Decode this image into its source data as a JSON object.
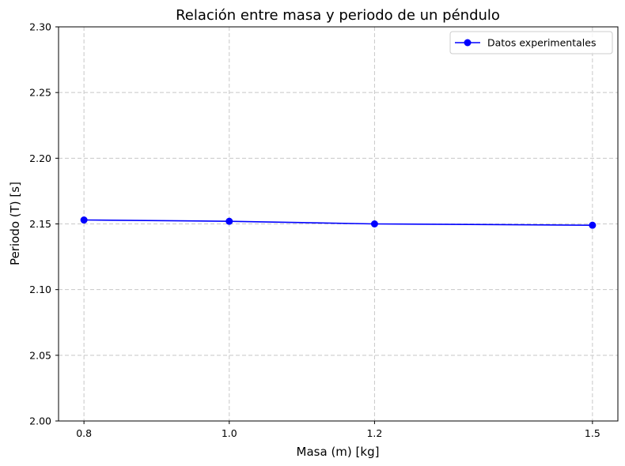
{
  "chart_data": {
    "type": "line",
    "title": "Relación entre masa y periodo de un péndulo",
    "xlabel": "Masa (m) [kg]",
    "ylabel": "Periodo (T) [s]",
    "x": [
      0.8,
      1.0,
      1.2,
      1.5
    ],
    "xticks": [
      "0.8",
      "1.0",
      "1.2",
      "1.5"
    ],
    "yticks": [
      "2.00",
      "2.05",
      "2.10",
      "2.15",
      "2.20",
      "2.25",
      "2.30"
    ],
    "xlim": [
      0.765,
      1.535
    ],
    "ylim": [
      2.0,
      2.3
    ],
    "grid": true,
    "legend_position": "top-right",
    "series": [
      {
        "name": "Datos experimentales",
        "values": [
          2.153,
          2.152,
          2.15,
          2.149
        ],
        "color": "#0000ff",
        "marker": "circle"
      }
    ]
  }
}
